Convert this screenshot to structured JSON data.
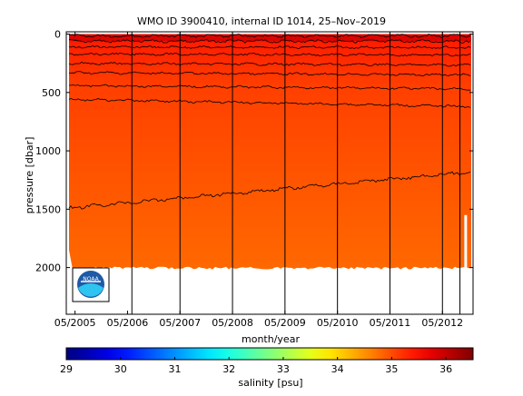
{
  "chart_data": {
    "type": "heatmap",
    "title": "WMO ID 3900410, internal ID 1014, 25–Nov–2019",
    "xlabel": "month/year",
    "ylabel": "pressure [dbar]",
    "x_ticks": [
      "05/2005",
      "05/2006",
      "05/2007",
      "05/2008",
      "05/2009",
      "05/2010",
      "05/2011",
      "05/2012"
    ],
    "x_range": [
      "03/2005",
      "12/2012"
    ],
    "y_ticks": [
      0,
      500,
      1000,
      1500,
      2000
    ],
    "ylim": [
      2400,
      -20
    ],
    "y_inverted": true,
    "colorbar": {
      "label": "salinity [psu]",
      "range": [
        29,
        36.5
      ],
      "ticks": [
        29,
        30,
        31,
        32,
        33,
        34,
        35,
        36
      ],
      "colormap": "jet"
    },
    "data_region": {
      "pressure_min": 0,
      "pressure_max_typical": 2000,
      "salinity_surface": 35.4,
      "salinity_mid": 35.0,
      "salinity_deep": 34.8
    },
    "contour_depths": [
      15,
      60,
      110,
      170,
      250,
      330,
      440,
      560,
      1490
    ],
    "contour_trend_dbar": [
      0,
      0,
      5,
      10,
      15,
      20,
      30,
      60,
      -310
    ],
    "year_lines": [
      "06/2006",
      "05/2007",
      "05/2008",
      "05/2009",
      "05/2010",
      "05/2011",
      "05/2012",
      "09/2012"
    ],
    "logo": "NOAA"
  }
}
